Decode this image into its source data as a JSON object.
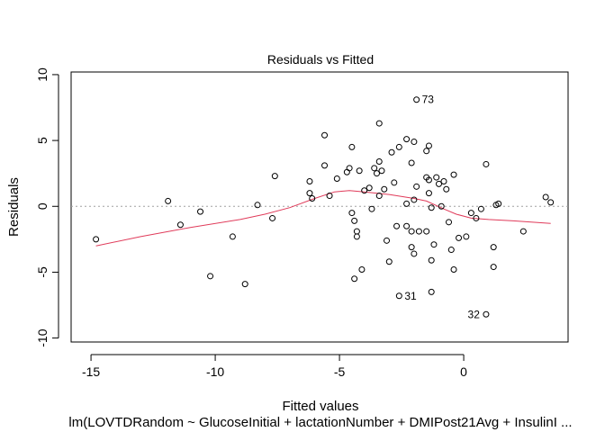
{
  "chart_data": {
    "type": "scatter",
    "title": "Residuals vs Fitted",
    "xlabel": "Fitted values",
    "subtitle": "lm(LOVTDRandom ~ GlucoseInitial + lactationNumber + DMIPost21Avg + InsulinI ...",
    "ylabel": "Residuals",
    "xlim": [
      -15.8,
      4.2
    ],
    "ylim": [
      -10.3,
      10.2
    ],
    "x_ticks": [
      -15,
      -10,
      -5,
      0
    ],
    "y_ticks": [
      -10,
      -5,
      0,
      5,
      10
    ],
    "reference_line": {
      "y": 0,
      "style": "dotted",
      "color": "#a0a0a0"
    },
    "smoother_color": "#e03b5a",
    "point_color": "#000000",
    "points": [
      {
        "x": -14.8,
        "y": -2.5
      },
      {
        "x": -11.9,
        "y": 0.4
      },
      {
        "x": -11.4,
        "y": -1.4
      },
      {
        "x": -10.6,
        "y": -0.4
      },
      {
        "x": -10.2,
        "y": -5.3
      },
      {
        "x": -9.3,
        "y": -2.3
      },
      {
        "x": -8.8,
        "y": -5.9
      },
      {
        "x": -8.3,
        "y": 0.1
      },
      {
        "x": -7.7,
        "y": -0.9
      },
      {
        "x": -7.6,
        "y": 2.3
      },
      {
        "x": -6.2,
        "y": 1.9
      },
      {
        "x": -6.2,
        "y": 1.0
      },
      {
        "x": -6.1,
        "y": 0.6
      },
      {
        "x": -5.6,
        "y": 5.4
      },
      {
        "x": -5.6,
        "y": 3.1
      },
      {
        "x": -5.4,
        "y": 0.8
      },
      {
        "x": -5.1,
        "y": 2.1
      },
      {
        "x": -4.7,
        "y": 2.6
      },
      {
        "x": -4.6,
        "y": 2.9
      },
      {
        "x": -4.5,
        "y": 4.5
      },
      {
        "x": -4.5,
        "y": -0.5
      },
      {
        "x": -4.4,
        "y": -1.1
      },
      {
        "x": -4.3,
        "y": -1.9
      },
      {
        "x": -4.3,
        "y": -2.3
      },
      {
        "x": -4.4,
        "y": -5.5
      },
      {
        "x": -4.1,
        "y": -4.8
      },
      {
        "x": -4.2,
        "y": 2.7
      },
      {
        "x": -4.0,
        "y": 1.2
      },
      {
        "x": -3.8,
        "y": 1.4
      },
      {
        "x": -3.7,
        "y": -0.2
      },
      {
        "x": -3.6,
        "y": 2.9
      },
      {
        "x": -3.5,
        "y": 2.5
      },
      {
        "x": -3.4,
        "y": 3.4
      },
      {
        "x": -3.4,
        "y": 0.8
      },
      {
        "x": -3.4,
        "y": 6.3
      },
      {
        "x": -3.3,
        "y": 2.7
      },
      {
        "x": -3.2,
        "y": 1.3
      },
      {
        "x": -3.1,
        "y": -2.6
      },
      {
        "x": -3.0,
        "y": -4.2
      },
      {
        "x": -2.9,
        "y": 4.1
      },
      {
        "x": -2.8,
        "y": 1.8
      },
      {
        "x": -2.7,
        "y": -1.5
      },
      {
        "x": -2.6,
        "y": 4.5
      },
      {
        "x": -2.6,
        "y": -6.8,
        "label": "31"
      },
      {
        "x": -2.3,
        "y": -1.5
      },
      {
        "x": -2.3,
        "y": 5.1
      },
      {
        "x": -2.3,
        "y": 0.2
      },
      {
        "x": -2.1,
        "y": 3.3
      },
      {
        "x": -2.1,
        "y": -1.9
      },
      {
        "x": -2.1,
        "y": -3.1
      },
      {
        "x": -2.0,
        "y": 4.9
      },
      {
        "x": -2.0,
        "y": -3.6
      },
      {
        "x": -2.0,
        "y": 0.5
      },
      {
        "x": -1.9,
        "y": 8.1,
        "label": "73"
      },
      {
        "x": -1.9,
        "y": 1.5
      },
      {
        "x": -1.8,
        "y": -1.9
      },
      {
        "x": -1.5,
        "y": 4.2
      },
      {
        "x": -1.5,
        "y": -1.9
      },
      {
        "x": -1.5,
        "y": 2.2
      },
      {
        "x": -1.4,
        "y": 4.6
      },
      {
        "x": -1.4,
        "y": 2.0
      },
      {
        "x": -1.4,
        "y": 1.0
      },
      {
        "x": -1.3,
        "y": -0.1
      },
      {
        "x": -1.3,
        "y": -6.5
      },
      {
        "x": -1.3,
        "y": -4.1
      },
      {
        "x": -1.2,
        "y": -2.9
      },
      {
        "x": -1.1,
        "y": 2.2
      },
      {
        "x": -1.0,
        "y": 1.7
      },
      {
        "x": -0.9,
        "y": 0.0
      },
      {
        "x": -0.8,
        "y": 1.9
      },
      {
        "x": -0.7,
        "y": 1.3
      },
      {
        "x": -0.6,
        "y": -1.2
      },
      {
        "x": -0.5,
        "y": -3.3
      },
      {
        "x": -0.4,
        "y": -4.8
      },
      {
        "x": -0.4,
        "y": 2.4
      },
      {
        "x": -0.2,
        "y": -2.4
      },
      {
        "x": 0.1,
        "y": -2.3
      },
      {
        "x": 0.3,
        "y": -0.5
      },
      {
        "x": 0.5,
        "y": -0.9
      },
      {
        "x": 0.7,
        "y": -0.2
      },
      {
        "x": 0.9,
        "y": -8.2,
        "label": "32"
      },
      {
        "x": 0.9,
        "y": 3.2
      },
      {
        "x": 1.2,
        "y": -3.1
      },
      {
        "x": 1.2,
        "y": -4.6
      },
      {
        "x": 1.3,
        "y": 0.1
      },
      {
        "x": 1.4,
        "y": 0.2
      },
      {
        "x": 2.4,
        "y": -1.9
      },
      {
        "x": 3.3,
        "y": 0.7
      },
      {
        "x": 3.5,
        "y": 0.3
      }
    ],
    "smoother": [
      {
        "x": -14.8,
        "y": -3.0
      },
      {
        "x": -13.0,
        "y": -2.3
      },
      {
        "x": -11.0,
        "y": -1.6
      },
      {
        "x": -9.0,
        "y": -1.0
      },
      {
        "x": -8.0,
        "y": -0.6
      },
      {
        "x": -7.0,
        "y": -0.1
      },
      {
        "x": -6.0,
        "y": 0.6
      },
      {
        "x": -5.2,
        "y": 1.1
      },
      {
        "x": -4.6,
        "y": 1.2
      },
      {
        "x": -4.0,
        "y": 1.1
      },
      {
        "x": -3.0,
        "y": 0.9
      },
      {
        "x": -2.0,
        "y": 0.6
      },
      {
        "x": -1.5,
        "y": 0.4
      },
      {
        "x": -0.8,
        "y": -0.2
      },
      {
        "x": -0.3,
        "y": -0.6
      },
      {
        "x": 0.3,
        "y": -0.9
      },
      {
        "x": 1.0,
        "y": -1.0
      },
      {
        "x": 2.0,
        "y": -1.1
      },
      {
        "x": 3.5,
        "y": -1.3
      }
    ]
  }
}
